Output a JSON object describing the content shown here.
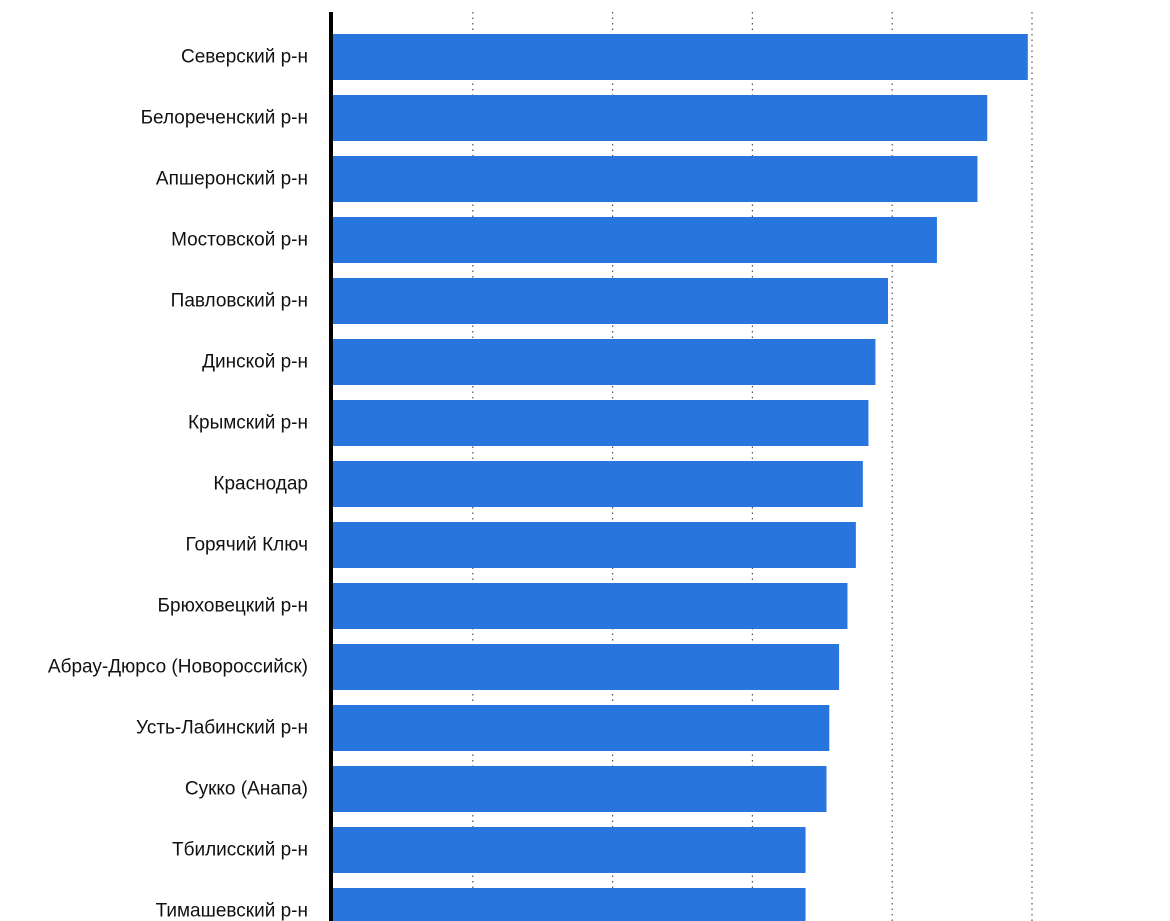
{
  "chart_data": {
    "type": "bar",
    "orientation": "horizontal",
    "title": "",
    "xlabel": "",
    "ylabel": "",
    "categories": [
      "Северский р-н",
      "Белореченский р-н",
      "Апшеронский р-н",
      "Мостовской р-н",
      "Павловский р-н",
      "Динской р-н",
      "Крымский р-н",
      "Краснодар",
      "Горячий Ключ",
      "Брюховецкий р-н",
      "Абрау-Дюрсо (Новороссийск)",
      "Усть-Лабинский р-н",
      "Сукко (Анапа)",
      "Тбилисский р-н",
      "Тимашевский р-н"
    ],
    "values": [
      4.97,
      4.68,
      4.61,
      4.32,
      3.97,
      3.88,
      3.83,
      3.79,
      3.74,
      3.68,
      3.62,
      3.55,
      3.53,
      3.38,
      3.38
    ],
    "xlim": [
      0,
      5
    ],
    "tick_labels_visible": false,
    "grid": true,
    "grid_style": "dotted vertical",
    "bar_color": "#2775DD"
  }
}
